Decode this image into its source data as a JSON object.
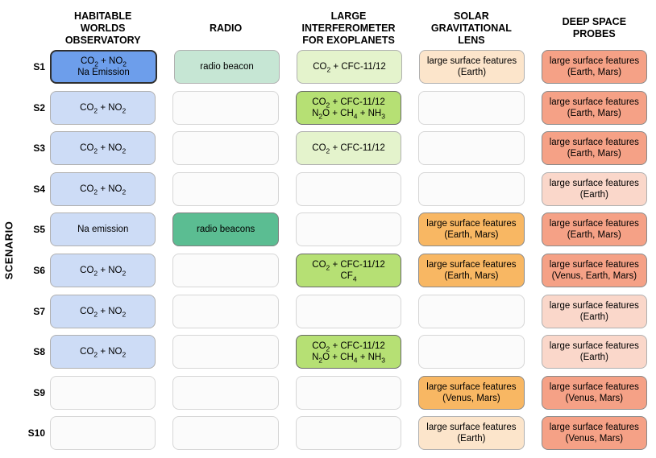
{
  "chart_data": {
    "type": "table",
    "title": "",
    "row_axis_label": "SCENARIO",
    "columns": [
      {
        "id": "hwo",
        "label": "HABITABLE WORLDS OBSERVATORY",
        "lines": [
          "HABITABLE",
          "WORLDS",
          "OBSERVATORY"
        ]
      },
      {
        "id": "radio",
        "label": "RADIO",
        "lines": [
          "RADIO"
        ]
      },
      {
        "id": "life",
        "label": "LARGE INTERFEROMETER FOR EXOPLANETS",
        "lines": [
          "LARGE",
          "INTERFEROMETER",
          "FOR EXOPLANETS"
        ]
      },
      {
        "id": "sgl",
        "label": "SOLAR GRAVITATIONAL LENS",
        "lines": [
          "SOLAR",
          "GRAVITATIONAL",
          "LENS"
        ]
      },
      {
        "id": "dsp",
        "label": "DEEP SPACE PROBES",
        "lines": [
          "DEEP SPACE",
          "PROBES"
        ]
      }
    ],
    "rows": [
      {
        "label": "S1",
        "cells": [
          {
            "lines": [
              "CO₂ + NO₂",
              "Na Emission"
            ],
            "tone": "blue_strong"
          },
          {
            "lines": [
              "radio beacon"
            ],
            "tone": "mint_light"
          },
          {
            "lines": [
              "CO₂ + CFC-11/12"
            ],
            "tone": "green_light"
          },
          {
            "lines": [
              "large surface features",
              "(Earth)"
            ],
            "tone": "orange_light"
          },
          {
            "lines": [
              "large surface features",
              "(Earth, Mars)"
            ],
            "tone": "salmon_strong"
          }
        ]
      },
      {
        "label": "S2",
        "cells": [
          {
            "lines": [
              "CO₂ + NO₂"
            ],
            "tone": "blue_light"
          },
          {
            "lines": [],
            "tone": "empty"
          },
          {
            "lines": [
              "CO₂ + CFC-11/12",
              "N₂O + CH₄ + NH₃"
            ],
            "tone": "green_strong"
          },
          {
            "lines": [],
            "tone": "empty"
          },
          {
            "lines": [
              "large surface features",
              "(Earth, Mars)"
            ],
            "tone": "salmon_strong"
          }
        ]
      },
      {
        "label": "S3",
        "cells": [
          {
            "lines": [
              "CO₂ + NO₂"
            ],
            "tone": "blue_light"
          },
          {
            "lines": [],
            "tone": "empty"
          },
          {
            "lines": [
              "CO₂ + CFC-11/12"
            ],
            "tone": "green_light"
          },
          {
            "lines": [],
            "tone": "empty"
          },
          {
            "lines": [
              "large surface features",
              "(Earth, Mars)"
            ],
            "tone": "salmon_strong"
          }
        ]
      },
      {
        "label": "S4",
        "cells": [
          {
            "lines": [
              "CO₂ + NO₂"
            ],
            "tone": "blue_light"
          },
          {
            "lines": [],
            "tone": "empty"
          },
          {
            "lines": [],
            "tone": "empty"
          },
          {
            "lines": [],
            "tone": "empty"
          },
          {
            "lines": [
              "large surface features",
              "(Earth)"
            ],
            "tone": "salmon_light"
          }
        ]
      },
      {
        "label": "S5",
        "cells": [
          {
            "lines": [
              "Na emission"
            ],
            "tone": "blue_light"
          },
          {
            "lines": [
              "radio beacons"
            ],
            "tone": "teal_strong"
          },
          {
            "lines": [],
            "tone": "empty"
          },
          {
            "lines": [
              "large surface features",
              "(Earth, Mars)"
            ],
            "tone": "orange_strong"
          },
          {
            "lines": [
              "large surface features",
              "(Earth, Mars)"
            ],
            "tone": "salmon_strong"
          }
        ]
      },
      {
        "label": "S6",
        "cells": [
          {
            "lines": [
              "CO₂ + NO₂"
            ],
            "tone": "blue_light"
          },
          {
            "lines": [],
            "tone": "empty"
          },
          {
            "lines": [
              "CO₂ + CFC-11/12",
              "CF₄"
            ],
            "tone": "green_strong"
          },
          {
            "lines": [
              "large surface features",
              "(Earth, Mars)"
            ],
            "tone": "orange_strong"
          },
          {
            "lines": [
              "large surface features",
              "(Venus, Earth, Mars)"
            ],
            "tone": "salmon_strong"
          }
        ]
      },
      {
        "label": "S7",
        "cells": [
          {
            "lines": [
              "CO₂ + NO₂"
            ],
            "tone": "blue_light"
          },
          {
            "lines": [],
            "tone": "empty"
          },
          {
            "lines": [],
            "tone": "empty"
          },
          {
            "lines": [],
            "tone": "empty"
          },
          {
            "lines": [
              "large surface features",
              "(Earth)"
            ],
            "tone": "salmon_light"
          }
        ]
      },
      {
        "label": "S8",
        "cells": [
          {
            "lines": [
              "CO₂ + NO₂"
            ],
            "tone": "blue_light"
          },
          {
            "lines": [],
            "tone": "empty"
          },
          {
            "lines": [
              "CO₂ + CFC-11/12",
              "N₂O + CH₄ + NH₃"
            ],
            "tone": "green_strong"
          },
          {
            "lines": [],
            "tone": "empty"
          },
          {
            "lines": [
              "large surface features",
              "(Earth)"
            ],
            "tone": "salmon_light"
          }
        ]
      },
      {
        "label": "S9",
        "cells": [
          {
            "lines": [],
            "tone": "empty"
          },
          {
            "lines": [],
            "tone": "empty"
          },
          {
            "lines": [],
            "tone": "empty"
          },
          {
            "lines": [
              "large surface features",
              "(Venus, Mars)"
            ],
            "tone": "orange_strong"
          },
          {
            "lines": [
              "large surface features",
              "(Venus, Mars)"
            ],
            "tone": "salmon_strong"
          }
        ]
      },
      {
        "label": "S10",
        "cells": [
          {
            "lines": [],
            "tone": "empty"
          },
          {
            "lines": [],
            "tone": "empty"
          },
          {
            "lines": [],
            "tone": "empty"
          },
          {
            "lines": [
              "large surface features",
              "(Earth)"
            ],
            "tone": "orange_light"
          },
          {
            "lines": [
              "large surface features",
              "(Venus, Mars)"
            ],
            "tone": "salmon_strong"
          }
        ]
      }
    ]
  },
  "palette": {
    "empty": {
      "bg": "#fbfbfb",
      "border": "#d6d6d6",
      "border_width": 1
    },
    "blue_strong": {
      "bg": "#6d9eeb",
      "border": "#2f2f2f",
      "border_width": 2
    },
    "blue_light": {
      "bg": "#cddcf6",
      "border": "#b0b0b0",
      "border_width": 1
    },
    "mint_light": {
      "bg": "#c6e6d4",
      "border": "#b0b0b0",
      "border_width": 1
    },
    "teal_strong": {
      "bg": "#5bbd92",
      "border": "#7f7f7f",
      "border_width": 1
    },
    "green_light": {
      "bg": "#e4f3cc",
      "border": "#b0b0b0",
      "border_width": 1
    },
    "green_strong": {
      "bg": "#b6e074",
      "border": "#686868",
      "border_width": 1
    },
    "orange_light": {
      "bg": "#fce5cb",
      "border": "#b0b0b0",
      "border_width": 1
    },
    "orange_strong": {
      "bg": "#f8b763",
      "border": "#8a8a8a",
      "border_width": 1
    },
    "salmon_strong": {
      "bg": "#f5a186",
      "border": "#8a8a8a",
      "border_width": 1
    },
    "salmon_light": {
      "bg": "#fad7ca",
      "border": "#b0b0b0",
      "border_width": 1
    }
  }
}
